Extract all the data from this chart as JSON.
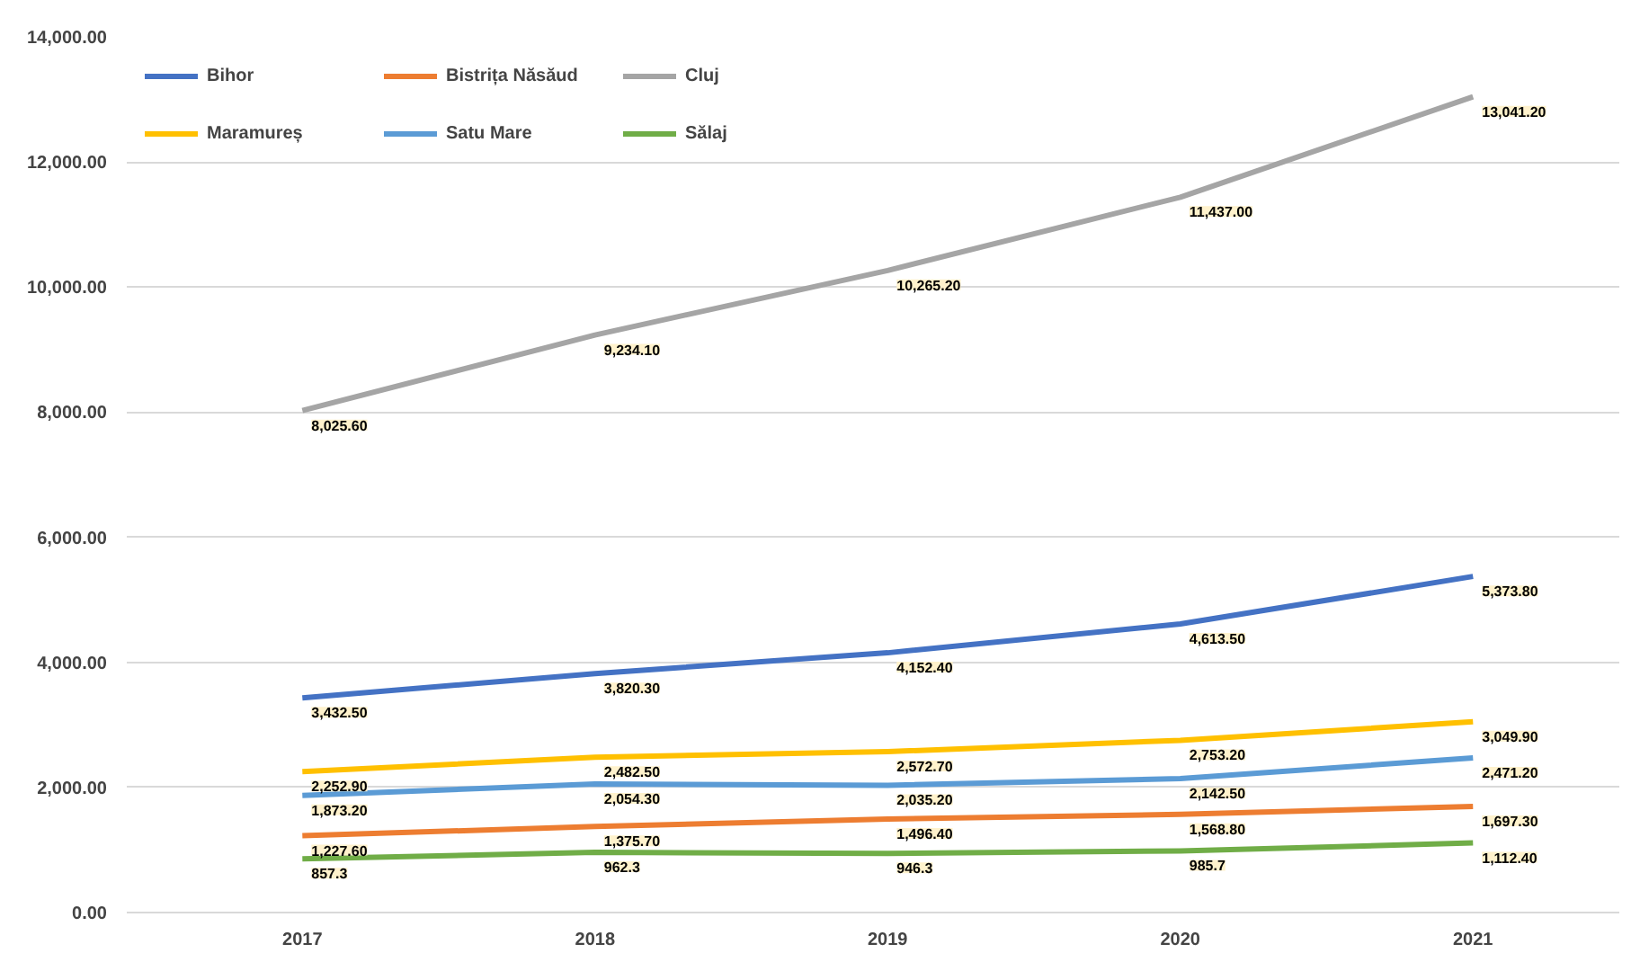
{
  "chart_data": {
    "type": "line",
    "categories": [
      "2017",
      "2018",
      "2019",
      "2020",
      "2021"
    ],
    "ylim": [
      0,
      14000
    ],
    "yticks": [
      {
        "value": 0,
        "label": "0.00"
      },
      {
        "value": 2000,
        "label": "2,000.00"
      },
      {
        "value": 4000,
        "label": "4,000.00"
      },
      {
        "value": 6000,
        "label": "6,000.00"
      },
      {
        "value": 8000,
        "label": "8,000.00"
      },
      {
        "value": 10000,
        "label": "10,000.00"
      },
      {
        "value": 12000,
        "label": "12,000.00"
      },
      {
        "value": 14000,
        "label": "14,000.00"
      }
    ],
    "grid": "y",
    "legend": "top left",
    "marker": "none",
    "line_style": "solid",
    "series": [
      {
        "name": "Bihor",
        "color": "#4472c4",
        "values": [
          3432.5,
          3820.3,
          4152.4,
          4613.5,
          5373.8
        ],
        "value_labels": [
          "3,432.50",
          "3,820.30",
          "4,152.40",
          "4,613.50",
          "5,373.80"
        ]
      },
      {
        "name": "Bistrița Năsăud",
        "color": "#ed7d31",
        "values": [
          1227.6,
          1375.7,
          1496.4,
          1568.8,
          1697.3
        ],
        "value_labels": [
          "1,227.60",
          "1,375.70",
          "1,496.40",
          "1,568.80",
          "1,697.30"
        ]
      },
      {
        "name": "Cluj",
        "color": "#a5a5a5",
        "values": [
          8025.6,
          9234.1,
          10265.2,
          11437.0,
          13041.2
        ],
        "value_labels": [
          "8,025.60",
          "9,234.10",
          "10,265.20",
          "11,437.00",
          "13,041.20"
        ]
      },
      {
        "name": "Maramureș",
        "color": "#ffc000",
        "values": [
          2252.9,
          2482.5,
          2572.7,
          2753.2,
          3049.9
        ],
        "value_labels": [
          "2,252.90",
          "2,482.50",
          "2,572.70",
          "2,753.20",
          "3,049.90"
        ]
      },
      {
        "name": "Satu Mare",
        "color": "#5b9bd5",
        "values": [
          1873.2,
          2054.3,
          2035.2,
          2142.5,
          2471.2
        ],
        "value_labels": [
          "1,873.20",
          "2,054.30",
          "2,035.20",
          "2,142.50",
          "2,471.20"
        ]
      },
      {
        "name": "Sălaj",
        "color": "#70ad47",
        "values": [
          857.3,
          962.3,
          946.3,
          985.7,
          1112.4
        ],
        "value_labels": [
          "857.3",
          "962.3",
          "946.3",
          "985.7",
          "1,112.40"
        ]
      }
    ]
  }
}
